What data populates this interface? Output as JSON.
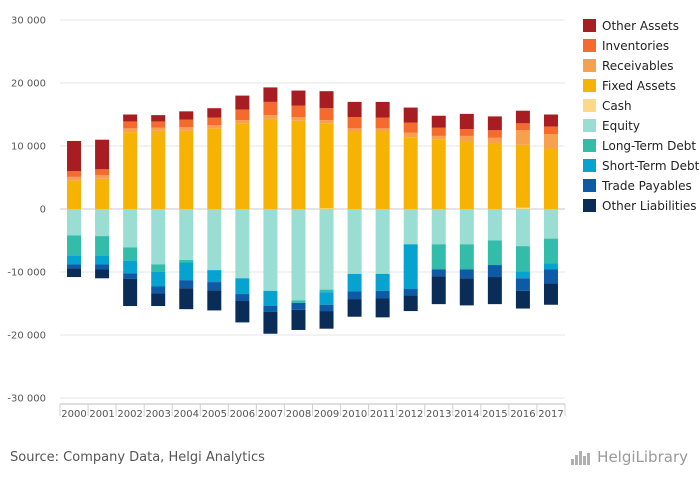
{
  "source_text": "Source: Company Data, Helgi Analytics",
  "brand_text": "HelgiLibrary",
  "brand_icon": "bar-logo-icon",
  "chart_data": {
    "type": "bar",
    "stacked": true,
    "title": "",
    "xlabel": "",
    "ylabel": "",
    "ylim": [
      -30000,
      30000
    ],
    "yticks": [
      30000,
      20000,
      10000,
      0,
      -10000,
      -20000,
      -30000
    ],
    "ytick_labels": [
      "30 000",
      "20 000",
      "10 000",
      "0",
      "-10 000",
      "-20 000",
      "-30 000"
    ],
    "grid": true,
    "legend_position": "right",
    "categories": [
      "2000",
      "2001",
      "2002",
      "2003",
      "2004",
      "2005",
      "2006",
      "2007",
      "2008",
      "2009",
      "2010",
      "2011",
      "2012",
      "2013",
      "2014",
      "2015",
      "2016",
      "2017"
    ],
    "series": [
      {
        "name": "Other Assets",
        "color": "#a71d22",
        "side": "assets",
        "values": [
          4800,
          4700,
          1100,
          1000,
          1300,
          1500,
          2200,
          2300,
          2400,
          2700,
          2400,
          2500,
          2400,
          1900,
          2400,
          2200,
          2000,
          1900
        ]
      },
      {
        "name": "Inventories",
        "color": "#f46b2d",
        "side": "assets",
        "values": [
          900,
          900,
          1100,
          1000,
          1200,
          1200,
          1700,
          2100,
          1800,
          1900,
          1800,
          1700,
          1600,
          1300,
          1100,
          1200,
          1100,
          1200
        ]
      },
      {
        "name": "Receivables",
        "color": "#f7a14f",
        "side": "assets",
        "values": [
          600,
          600,
          600,
          500,
          600,
          500,
          500,
          600,
          600,
          500,
          500,
          500,
          800,
          600,
          800,
          900,
          2300,
          2300
        ]
      },
      {
        "name": "Fixed Assets",
        "color": "#f7b303",
        "side": "assets",
        "values": [
          4500,
          4800,
          12200,
          12400,
          12400,
          12800,
          13600,
          14300,
          14000,
          13500,
          12300,
          12300,
          11300,
          11000,
          10800,
          10400,
          10000,
          9600
        ]
      },
      {
        "name": "Cash",
        "color": "#fdd886",
        "side": "assets",
        "values": [
          0,
          0,
          0,
          0,
          0,
          0,
          0,
          0,
          0,
          100,
          0,
          0,
          0,
          0,
          0,
          0,
          200,
          0
        ]
      },
      {
        "name": "Equity",
        "color": "#9addd2",
        "side": "liabilities",
        "values": [
          4200,
          4300,
          6100,
          8800,
          8100,
          9700,
          11000,
          13000,
          14500,
          12800,
          10300,
          10300,
          5600,
          5600,
          5600,
          5000,
          5900,
          4700
        ]
      },
      {
        "name": "Long-Term Debt",
        "color": "#33bcaa",
        "side": "liabilities",
        "values": [
          3200,
          3100,
          2100,
          1200,
          400,
          0,
          0,
          0,
          400,
          400,
          0,
          0,
          0,
          4000,
          4000,
          3900,
          4000,
          3900
        ]
      },
      {
        "name": "Short-Term Debt",
        "color": "#06a3d1",
        "side": "liabilities",
        "values": [
          1400,
          1400,
          2000,
          2300,
          2800,
          1900,
          2500,
          2400,
          0,
          2000,
          2800,
          2700,
          7100,
          0,
          0,
          0,
          1100,
          1000
        ]
      },
      {
        "name": "Trade Payables",
        "color": "#0d5aa7",
        "side": "liabilities",
        "values": [
          600,
          800,
          900,
          1100,
          1300,
          1300,
          1100,
          900,
          1100,
          1000,
          1200,
          1200,
          1000,
          1100,
          1400,
          1900,
          2000,
          2200
        ]
      },
      {
        "name": "Other Liabilities",
        "color": "#0a2d58",
        "side": "liabilities",
        "values": [
          1400,
          1400,
          4300,
          2000,
          3300,
          3200,
          3400,
          3500,
          3200,
          2800,
          2800,
          3000,
          2500,
          4400,
          4300,
          4300,
          2800,
          3400
        ]
      }
    ]
  }
}
